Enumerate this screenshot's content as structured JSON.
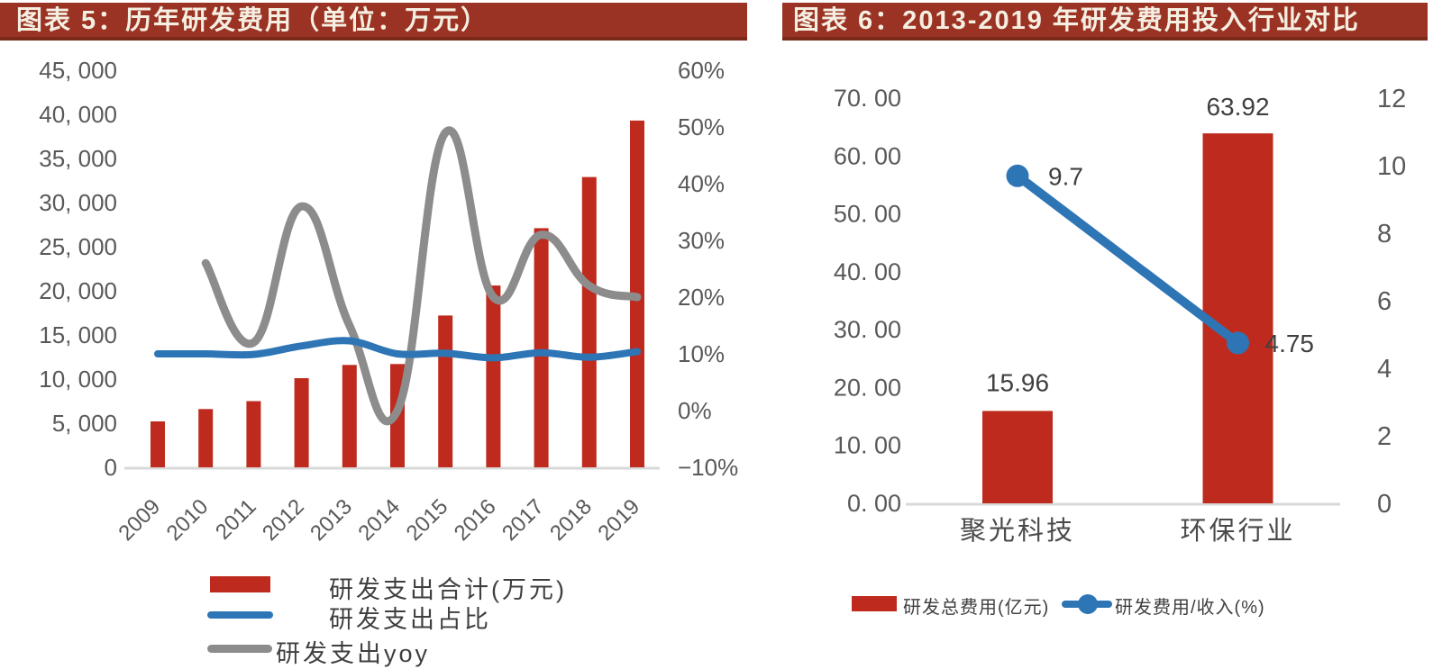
{
  "colors": {
    "title_bar_bg": "#9A3324",
    "title_bar_border": "#7A281A",
    "title_text": "#F5EFE2",
    "bar_red": "#BE2B1E",
    "line_blue": "#2E75B6",
    "line_gray": "#8C8C8C",
    "axis_text": "#595959",
    "data_label_text": "#404040",
    "baseline": "#D9D9D9"
  },
  "chart_data": [
    {
      "id": "rd-expense-history",
      "type": "bar+line combo, dual axis",
      "title": "图表 5：历年研发费用（单位：万元）",
      "categories": [
        "2009",
        "2010",
        "2011",
        "2012",
        "2013",
        "2014",
        "2015",
        "2016",
        "2017",
        "2018",
        "2019"
      ],
      "series": [
        {
          "name": "研发支出合计(万元)",
          "type": "bar",
          "axis": "left",
          "color": "#BE2B1E",
          "values": [
            5200,
            6600,
            7500,
            10100,
            11600,
            11700,
            17200,
            20600,
            27100,
            32900,
            39300
          ]
        },
        {
          "name": "研发支出占比",
          "type": "line",
          "axis": "right",
          "color": "#2E75B6",
          "values": [
            10.0,
            10.0,
            9.9,
            11.4,
            12.3,
            10.0,
            10.1,
            9.3,
            10.2,
            9.4,
            10.4
          ]
        },
        {
          "name": "研发支出yoy",
          "type": "line",
          "axis": "right",
          "color": "#8C8C8C",
          "values": [
            null,
            26,
            12,
            36,
            15,
            0,
            49,
            20,
            31,
            22,
            20
          ]
        }
      ],
      "left_axis": {
        "min": 0,
        "max": 45000,
        "step": 5000,
        "tick_labels": [
          "45, 000",
          "40, 000",
          "35, 000",
          "30, 000",
          "25, 000",
          "20, 000",
          "15, 000",
          "10, 000",
          "5, 000",
          "0"
        ]
      },
      "right_axis": {
        "min": -10,
        "max": 60,
        "step": 10,
        "tick_labels": [
          "60%",
          "50%",
          "40%",
          "30%",
          "20%",
          "10%",
          "0%",
          "−10%"
        ]
      },
      "grid": "off",
      "legend_position": "bottom-left"
    },
    {
      "id": "rd-expense-industry-comparison",
      "type": "bar+line combo, dual axis",
      "title": "图表 6：2013-2019 年研发费用投入行业对比",
      "categories": [
        "聚光科技",
        "环保行业"
      ],
      "series": [
        {
          "name": "研发总费用(亿元)",
          "type": "bar",
          "axis": "left",
          "color": "#BE2B1E",
          "values": [
            15.96,
            63.92
          ],
          "data_labels": [
            "15.96",
            "63.92"
          ]
        },
        {
          "name": "研发费用/收入(%)",
          "type": "line",
          "axis": "right",
          "color": "#2E75B6",
          "values": [
            9.7,
            4.75
          ],
          "data_labels": [
            "9.7",
            "4.75"
          ]
        }
      ],
      "left_axis": {
        "min": 0,
        "max": 70,
        "step": 10,
        "tick_labels": [
          "70. 00",
          "60. 00",
          "50. 00",
          "40. 00",
          "30. 00",
          "20. 00",
          "10. 00",
          "0. 00"
        ]
      },
      "right_axis": {
        "min": 0,
        "max": 12,
        "step": 2,
        "tick_labels": [
          "12",
          "10",
          "8",
          "6",
          "4",
          "2",
          "0"
        ]
      },
      "grid": "off",
      "legend_position": "bottom"
    }
  ]
}
